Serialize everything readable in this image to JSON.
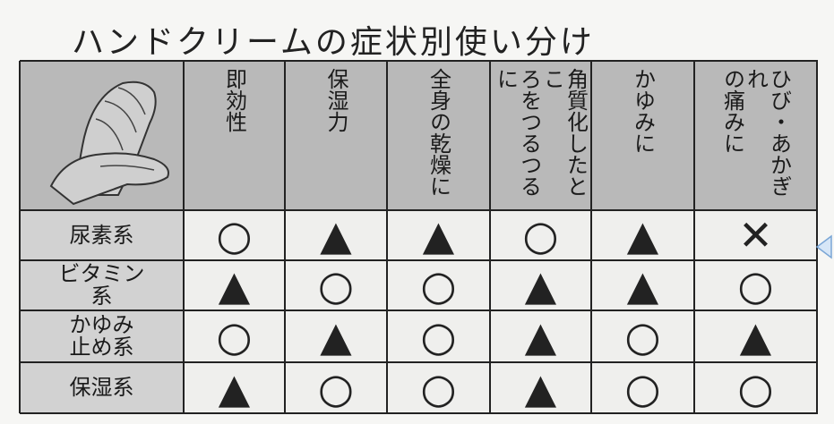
{
  "title": "ハンドクリームの症状別使い分け",
  "table": {
    "columns": [
      "即効性",
      "保湿力",
      "全身の乾燥に",
      "角質化したとこ\nろをつるつるに",
      "かゆみに",
      "ひび・あかぎれ\nの痛みに"
    ],
    "rows": [
      {
        "label": "尿素系",
        "cells": [
          "○",
          "▲",
          "▲",
          "○",
          "▲",
          "✕"
        ]
      },
      {
        "label": "ビタミン\n系",
        "cells": [
          "▲",
          "○",
          "○",
          "▲",
          "▲",
          "○"
        ]
      },
      {
        "label": "かゆみ\n止め系",
        "cells": [
          "○",
          "▲",
          "○",
          "▲",
          "○",
          "▲"
        ]
      },
      {
        "label": "保湿系",
        "cells": [
          "▲",
          "○",
          "○",
          "▲",
          "○",
          "○"
        ]
      }
    ]
  }
}
